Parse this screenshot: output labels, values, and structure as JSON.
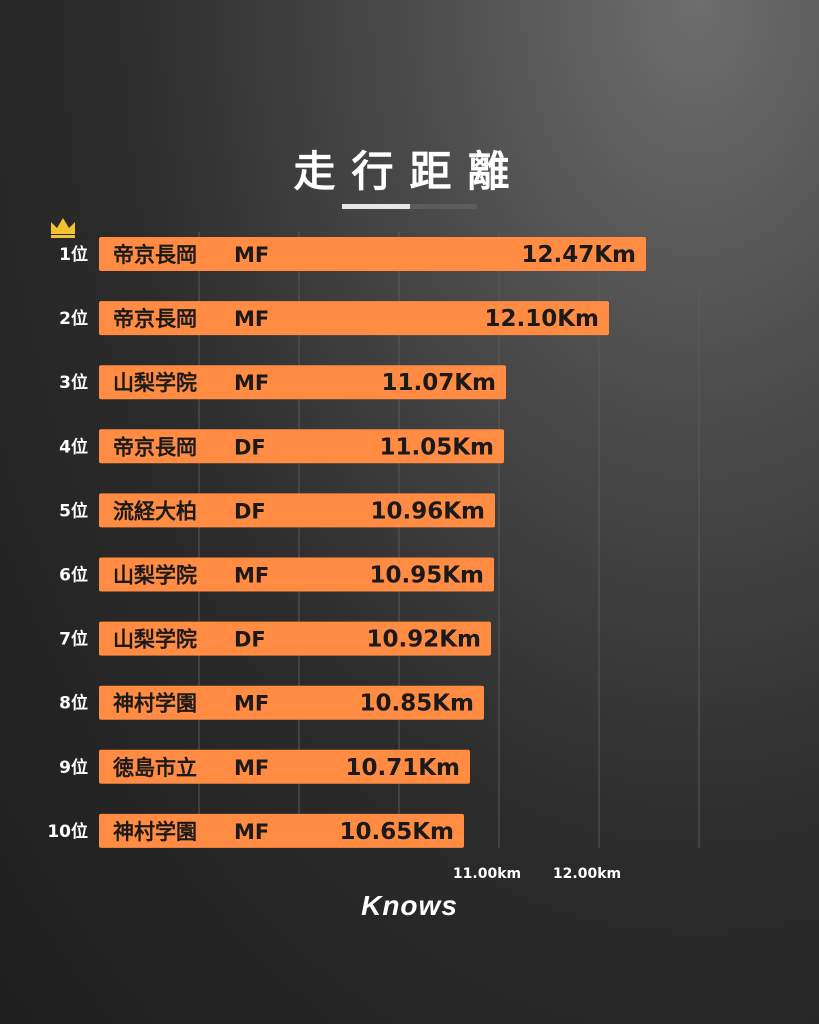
{
  "title": "走行距離",
  "title_progress": 0.5,
  "brand": "Knows",
  "colors": {
    "bar": "#ff8c42",
    "grid": "#5a5a5a",
    "crown": "#f2c230"
  },
  "chart_data": {
    "type": "bar",
    "orientation": "horizontal",
    "ranks": [
      "1位",
      "2位",
      "3位",
      "4位",
      "5位",
      "6位",
      "7位",
      "8位",
      "9位",
      "10位"
    ],
    "schools": [
      "帝京長岡",
      "帝京長岡",
      "山梨学院",
      "帝京長岡",
      "流経大柏",
      "山梨学院",
      "山梨学院",
      "神村学園",
      "徳島市立",
      "神村学園"
    ],
    "positions": [
      "MF",
      "MF",
      "MF",
      "DF",
      "DF",
      "MF",
      "DF",
      "MF",
      "MF",
      "MF"
    ],
    "values": [
      12.47,
      12.1,
      11.07,
      11.05,
      10.96,
      10.95,
      10.92,
      10.85,
      10.71,
      10.65
    ],
    "value_labels": [
      "12.47Km",
      "12.10Km",
      "11.07Km",
      "11.05Km",
      "10.96Km",
      "10.95Km",
      "10.92Km",
      "10.85Km",
      "10.71Km",
      "10.65Km"
    ],
    "xlim": [
      7.0,
      13.0
    ],
    "gridlines": [
      8.0,
      9.0,
      10.0,
      11.0,
      12.0,
      13.0
    ],
    "tick_values": [
      11.0,
      12.0
    ],
    "tick_labels": [
      "11.00km",
      "12.00km"
    ],
    "title": "",
    "xlabel": "",
    "ylabel": ""
  }
}
